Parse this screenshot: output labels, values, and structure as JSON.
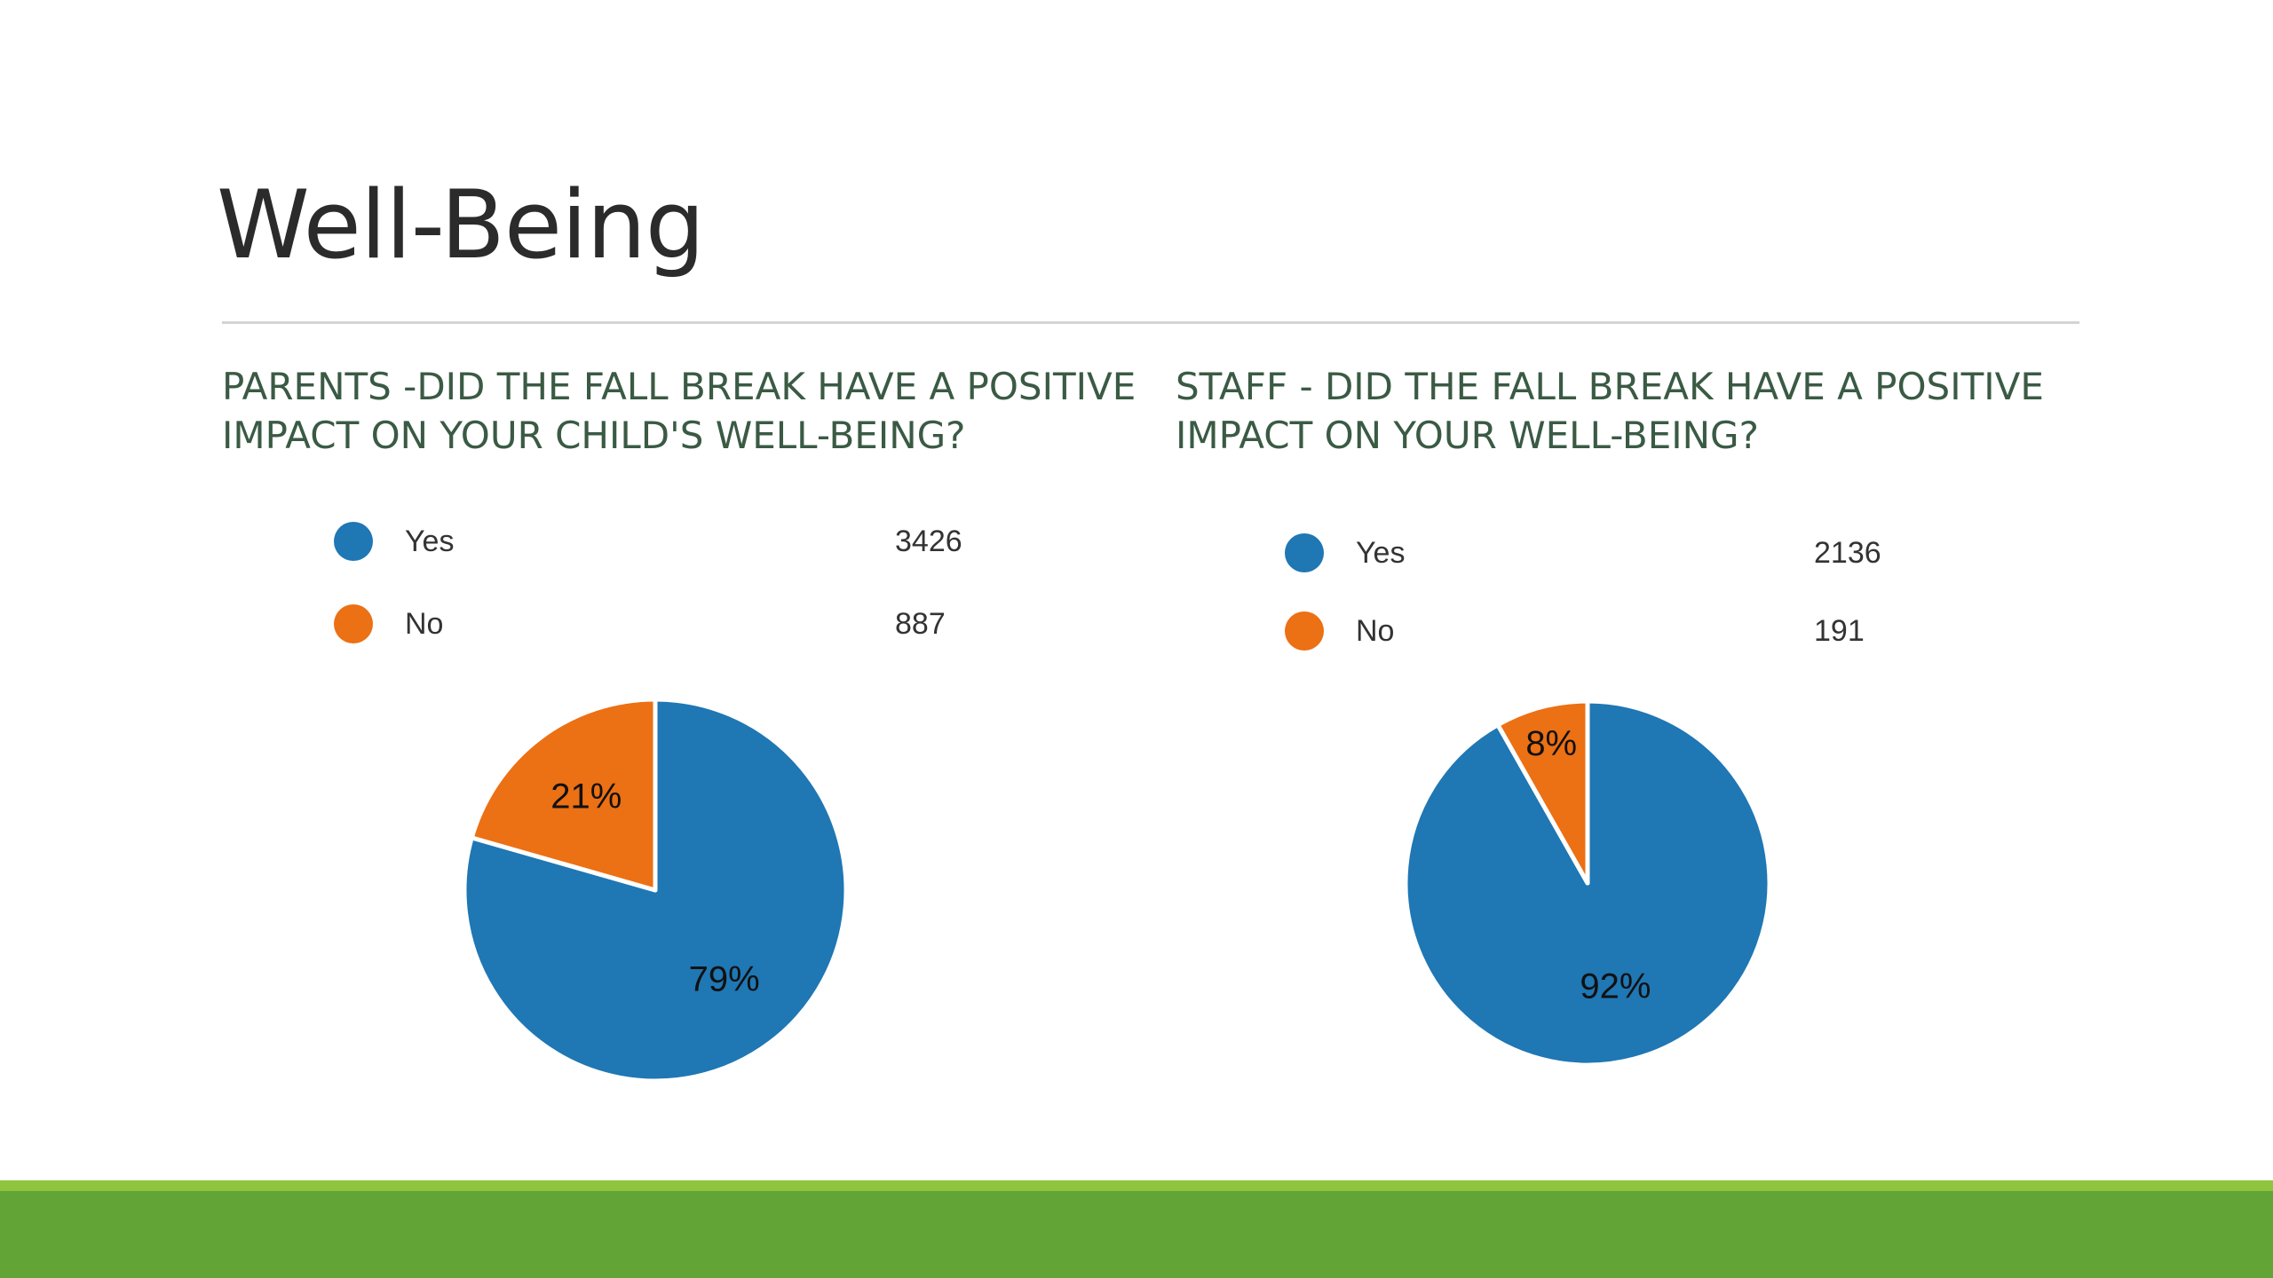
{
  "slide": {
    "title": "Well-Being"
  },
  "colors": {
    "yes": "#1f77b4",
    "no": "#ec7014",
    "footer_light": "#8fc43f",
    "footer_dark": "#62a435"
  },
  "chart_data": [
    {
      "type": "pie",
      "title": "PARENTS -DID THE FALL BREAK HAVE A POSITIVE IMPACT ON YOUR CHILD'S WELL-BEING?",
      "categories": [
        "Yes",
        "No"
      ],
      "values": [
        3426,
        887
      ],
      "percent_labels": [
        "79%",
        "21%"
      ],
      "colors": [
        "#1f77b4",
        "#ec7014"
      ],
      "legend": "top"
    },
    {
      "type": "pie",
      "title": "STAFF - DID THE FALL BREAK HAVE A POSITIVE IMPACT ON YOUR WELL-BEING?",
      "categories": [
        "Yes",
        "No"
      ],
      "values": [
        2136,
        191
      ],
      "percent_labels": [
        "92%",
        "8%"
      ],
      "colors": [
        "#1f77b4",
        "#ec7014"
      ],
      "legend": "top"
    }
  ]
}
